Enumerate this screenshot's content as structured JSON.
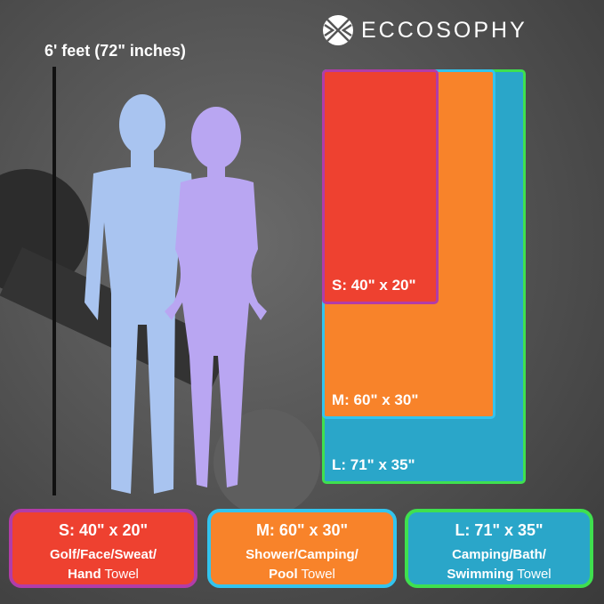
{
  "brand": {
    "name": "ECCOSOPHY"
  },
  "height_label": "6' feet (72\" inches)",
  "towels": [
    {
      "size": "S: 40\" x 20\"",
      "use_bold": "Golf/Face/Sweat/",
      "use_bold2": "Hand",
      "suffix": "Towel",
      "fill": "#ee4130",
      "border": "#b23ca8"
    },
    {
      "size": "M: 60\" x 30\"",
      "use_bold": "Shower/Camping/",
      "use_bold2": "Pool",
      "suffix": "Towel",
      "fill": "#f8832a",
      "border": "#32c4ee"
    },
    {
      "size": "L: 71\" x 35\"",
      "use_bold": "Camping/Bath/",
      "use_bold2": "Swimming",
      "suffix": "Towel",
      "fill": "#2aa6c9",
      "border": "#3fe04f"
    }
  ],
  "silhouettes": {
    "man_color": "#a9c4f0",
    "woman_color": "#b9a6f2"
  }
}
